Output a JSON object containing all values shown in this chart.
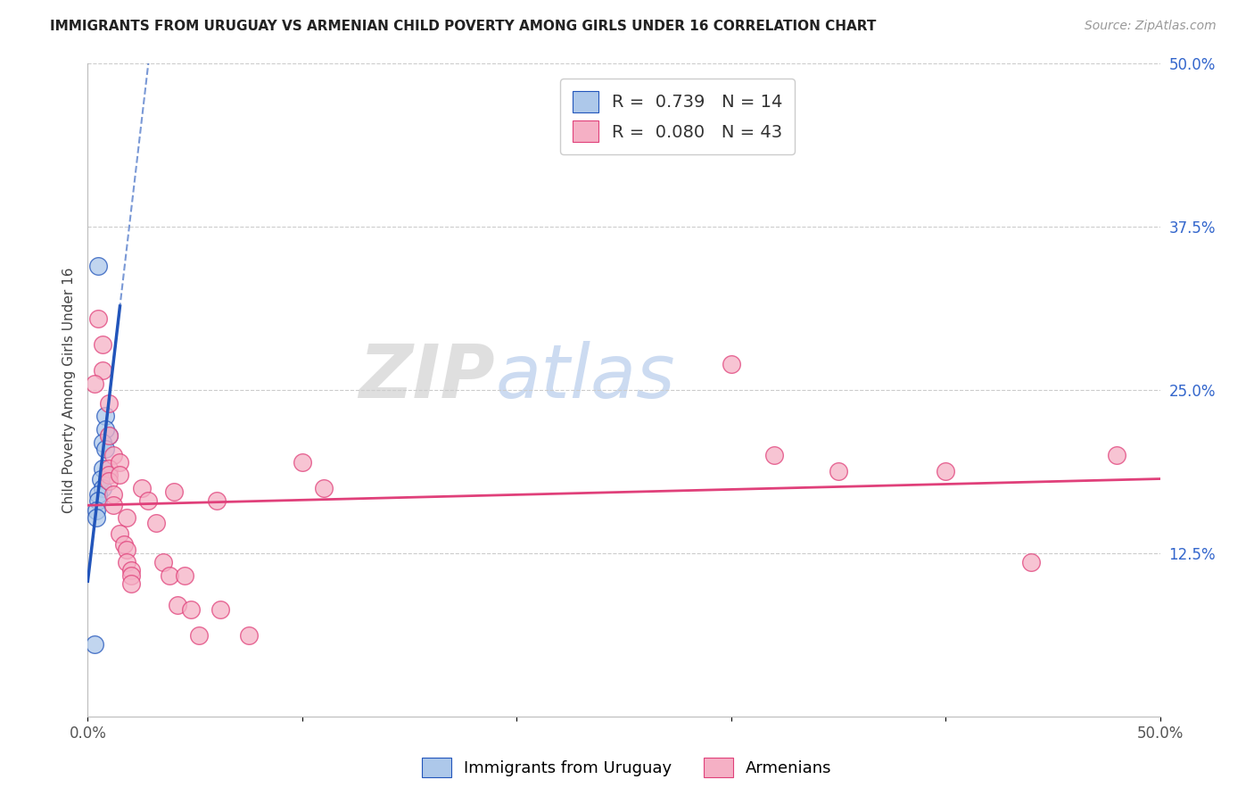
{
  "title": "IMMIGRANTS FROM URUGUAY VS ARMENIAN CHILD POVERTY AMONG GIRLS UNDER 16 CORRELATION CHART",
  "source": "Source: ZipAtlas.com",
  "ylabel": "Child Poverty Among Girls Under 16",
  "xlim": [
    0.0,
    0.5
  ],
  "ylim": [
    0.0,
    0.5
  ],
  "y_ticks_right": [
    0.125,
    0.25,
    0.375,
    0.5
  ],
  "y_tick_labels_right": [
    "12.5%",
    "25.0%",
    "37.5%",
    "50.0%"
  ],
  "legend1_label": "R =  0.739   N = 14",
  "legend2_label": "R =  0.080   N = 43",
  "watermark_zip": "ZIP",
  "watermark_atlas": "atlas",
  "uruguay_color": "#adc8ea",
  "armenian_color": "#f5b0c5",
  "trendline_uruguay_color": "#2255bb",
  "trendline_armenian_color": "#e0407a",
  "uruguay_scatter": [
    [
      0.005,
      0.345
    ],
    [
      0.01,
      0.215
    ],
    [
      0.008,
      0.23
    ],
    [
      0.008,
      0.22
    ],
    [
      0.007,
      0.21
    ],
    [
      0.008,
      0.205
    ],
    [
      0.007,
      0.19
    ],
    [
      0.006,
      0.182
    ],
    [
      0.007,
      0.175
    ],
    [
      0.005,
      0.17
    ],
    [
      0.005,
      0.165
    ],
    [
      0.004,
      0.158
    ],
    [
      0.004,
      0.152
    ],
    [
      0.003,
      0.055
    ]
  ],
  "armenian_scatter": [
    [
      0.005,
      0.305
    ],
    [
      0.007,
      0.285
    ],
    [
      0.007,
      0.265
    ],
    [
      0.01,
      0.24
    ],
    [
      0.003,
      0.255
    ],
    [
      0.01,
      0.215
    ],
    [
      0.012,
      0.2
    ],
    [
      0.01,
      0.19
    ],
    [
      0.01,
      0.185
    ],
    [
      0.01,
      0.18
    ],
    [
      0.012,
      0.17
    ],
    [
      0.012,
      0.162
    ],
    [
      0.015,
      0.195
    ],
    [
      0.015,
      0.185
    ],
    [
      0.018,
      0.152
    ],
    [
      0.015,
      0.14
    ],
    [
      0.017,
      0.132
    ],
    [
      0.018,
      0.128
    ],
    [
      0.018,
      0.118
    ],
    [
      0.02,
      0.112
    ],
    [
      0.02,
      0.108
    ],
    [
      0.02,
      0.102
    ],
    [
      0.025,
      0.175
    ],
    [
      0.028,
      0.165
    ],
    [
      0.032,
      0.148
    ],
    [
      0.035,
      0.118
    ],
    [
      0.038,
      0.108
    ],
    [
      0.04,
      0.172
    ],
    [
      0.042,
      0.085
    ],
    [
      0.045,
      0.108
    ],
    [
      0.048,
      0.082
    ],
    [
      0.052,
      0.062
    ],
    [
      0.06,
      0.165
    ],
    [
      0.062,
      0.082
    ],
    [
      0.075,
      0.062
    ],
    [
      0.1,
      0.195
    ],
    [
      0.11,
      0.175
    ],
    [
      0.3,
      0.27
    ],
    [
      0.32,
      0.2
    ],
    [
      0.35,
      0.188
    ],
    [
      0.4,
      0.188
    ],
    [
      0.44,
      0.118
    ],
    [
      0.48,
      0.2
    ]
  ]
}
